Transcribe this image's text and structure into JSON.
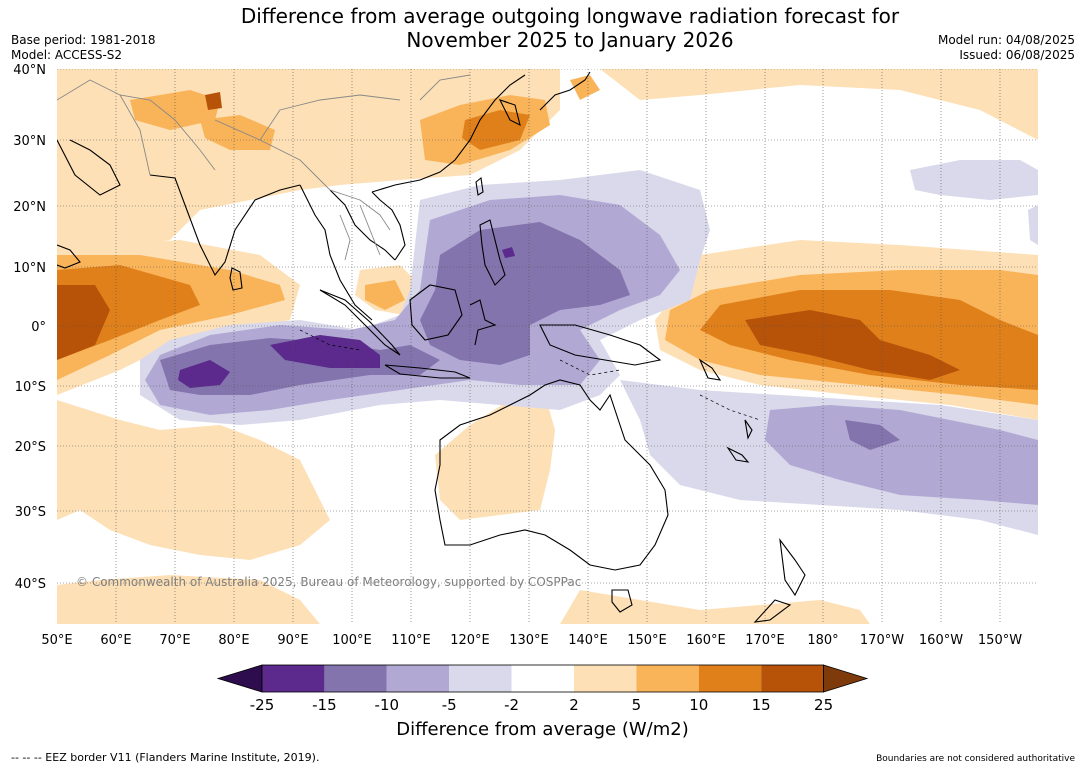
{
  "title": {
    "line1": "Difference from average outgoing longwave radiation forecast for",
    "line2": "November 2025 to January 2026"
  },
  "meta_left": {
    "base_period": "Base period: 1981-2018",
    "model": "Model: ACCESS-S2"
  },
  "meta_right": {
    "model_run": "Model run: 04/08/2025",
    "issued": "Issued: 06/08/2025"
  },
  "map": {
    "lat_labels": [
      "40°N",
      "30°N",
      "20°N",
      "10°N",
      "0°",
      "10°S",
      "20°S",
      "30°S",
      "40°S"
    ],
    "lon_labels": [
      "50°E",
      "60°E",
      "70°E",
      "80°E",
      "90°E",
      "100°E",
      "110°E",
      "120°E",
      "130°E",
      "140°E",
      "150°E",
      "160°E",
      "170°E",
      "180°",
      "170°W",
      "160°W",
      "150°W"
    ],
    "copyright": "© Commonwealth of Australia 2025, Bureau of Meteorology, supported by COSPPac"
  },
  "colorbar": {
    "ticks": [
      "-25",
      "-15",
      "-10",
      "-5",
      "-2",
      "2",
      "5",
      "10",
      "15",
      "25"
    ],
    "colors": [
      "#2d0d4e",
      "#5b2a8c",
      "#8374ad",
      "#b1a9d3",
      "#d9d9eb",
      "#ffffff",
      "#fde0b6",
      "#f9b45a",
      "#e0801b",
      "#b65309",
      "#7f3a0b"
    ],
    "label": "Difference from average (W/m2)"
  },
  "footer": {
    "eez": "--  --  -- EEZ border V11 (Flanders Marine Institute, 2019).",
    "disclaimer": "Boundaries are not considered authoritative"
  }
}
